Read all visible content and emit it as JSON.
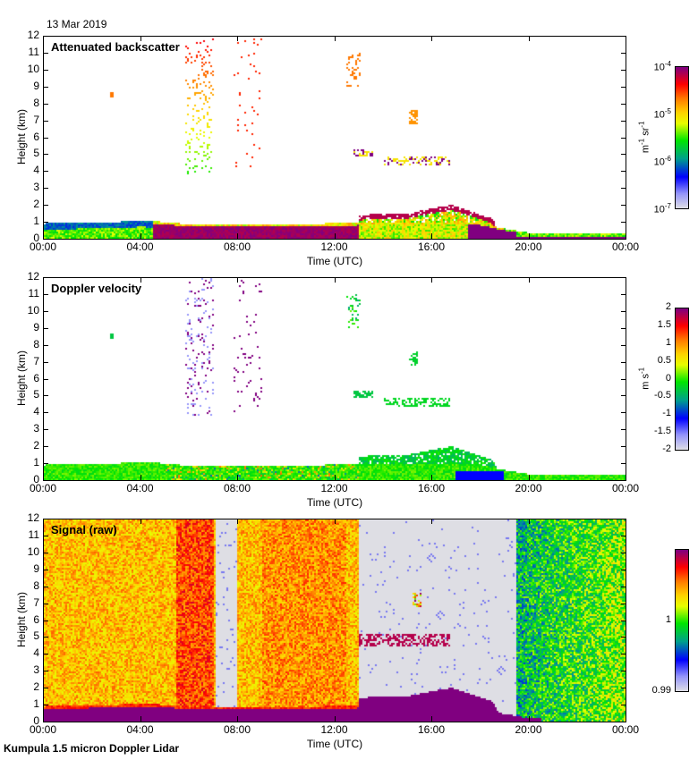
{
  "date_label": "13 Mar 2019",
  "footer": "Kumpula 1.5 micron Doppler Lidar",
  "chart_data": [
    {
      "type": "heatmap",
      "title": "Attenuated backscatter",
      "xlabel": "Time (UTC)",
      "ylabel": "Height (km)",
      "xticks": [
        "00:00",
        "04:00",
        "08:00",
        "12:00",
        "16:00",
        "20:00",
        "00:00"
      ],
      "xlim_hours": [
        0,
        24
      ],
      "yticks": [
        "0",
        "1",
        "2",
        "3",
        "4",
        "5",
        "6",
        "7",
        "8",
        "9",
        "10",
        "11",
        "12"
      ],
      "ylim_km": [
        0,
        12
      ],
      "colorbar": {
        "label": "m-1 sr-1",
        "scale": "log",
        "ticks": [
          "10-7",
          "10-6",
          "10-5",
          "10-4"
        ],
        "range": [
          1e-07,
          0.0001
        ],
        "colormap": "rainbow-purple-top"
      },
      "features": [
        {
          "desc": "boundary layer",
          "t_start": 0,
          "t_end": 24,
          "top_km": [
            0.9,
            0.9,
            1.0,
            0.8,
            0.8,
            0.9,
            0.6,
            0.3,
            0.3
          ],
          "top_times": [
            0,
            2,
            4,
            6,
            10,
            14,
            18,
            20,
            24
          ]
        },
        {
          "desc": "high-signal layer (purple)",
          "t_start": 5.5,
          "t_end": 12.5,
          "height_km": [
            0,
            0.8
          ]
        },
        {
          "desc": "cloud layer",
          "t_start": 13,
          "t_end": 17.5,
          "height_km": [
            1.2,
            2.0
          ]
        },
        {
          "desc": "sparse high clouds",
          "t_start": 5.8,
          "t_end": 9,
          "height_km": [
            4,
            12
          ]
        },
        {
          "desc": "mid-level cloud",
          "t_start": 12.8,
          "t_end": 16.6,
          "height_km": [
            4.5,
            5.3
          ]
        }
      ]
    },
    {
      "type": "heatmap",
      "title": "Doppler velocity",
      "xlabel": "Time (UTC)",
      "ylabel": "Height (km)",
      "xticks": [
        "00:00",
        "04:00",
        "08:00",
        "12:00",
        "16:00",
        "20:00",
        "00:00"
      ],
      "xlim_hours": [
        0,
        24
      ],
      "yticks": [
        "0",
        "1",
        "2",
        "3",
        "4",
        "5",
        "6",
        "7",
        "8",
        "9",
        "10",
        "11",
        "12"
      ],
      "ylim_km": [
        0,
        12
      ],
      "colorbar": {
        "label": "m s-1",
        "scale": "linear",
        "ticks": [
          "-2",
          "-1.5",
          "-1",
          "-0.5",
          "0",
          "0.5",
          "1",
          "1.5",
          "2"
        ],
        "range": [
          -2,
          2
        ],
        "colormap": "rainbow-purple-top"
      },
      "features": [
        {
          "desc": "boundary layer mostly ~0 m/s (green)",
          "t_start": 0,
          "t_end": 24,
          "height_km": [
            0,
            1.0
          ]
        },
        {
          "desc": "cloud layer",
          "t_start": 13,
          "t_end": 17.5,
          "height_km": [
            1.0,
            2.0
          ]
        }
      ]
    },
    {
      "type": "heatmap",
      "title": "Signal (raw)",
      "xlabel": "Time (UTC)",
      "ylabel": "Height (km)",
      "xticks": [
        "00:00",
        "04:00",
        "08:00",
        "12:00",
        "16:00",
        "20:00",
        "00:00"
      ],
      "xlim_hours": [
        0,
        24
      ],
      "yticks": [
        "0",
        "1",
        "2",
        "3",
        "4",
        "5",
        "6",
        "7",
        "8",
        "9",
        "10",
        "11",
        "12"
      ],
      "ylim_km": [
        0,
        12
      ],
      "colorbar": {
        "label": "",
        "scale": "linear",
        "ticks": [
          "0.99",
          "1"
        ],
        "range": [
          0.99,
          1.01
        ],
        "colormap": "rainbow-purple-top"
      },
      "features": [
        {
          "desc": "noisy signal yellow/orange",
          "t_start": 0,
          "t_end": 13,
          "height_km": [
            1,
            12
          ]
        },
        {
          "desc": "data gap (grey)",
          "t_start": 7.1,
          "t_end": 8.0,
          "height_km": [
            1,
            12
          ]
        },
        {
          "desc": "low signal (grey)",
          "t_start": 13,
          "t_end": 19.5,
          "height_km": [
            0,
            12
          ]
        },
        {
          "desc": "noisy blue/green",
          "t_start": 19.5,
          "t_end": 24,
          "height_km": [
            0,
            12
          ]
        },
        {
          "desc": "strong signal near surface (purple)",
          "t_start": 0,
          "t_end": 20,
          "height_km": [
            0,
            0.8
          ]
        }
      ]
    }
  ]
}
